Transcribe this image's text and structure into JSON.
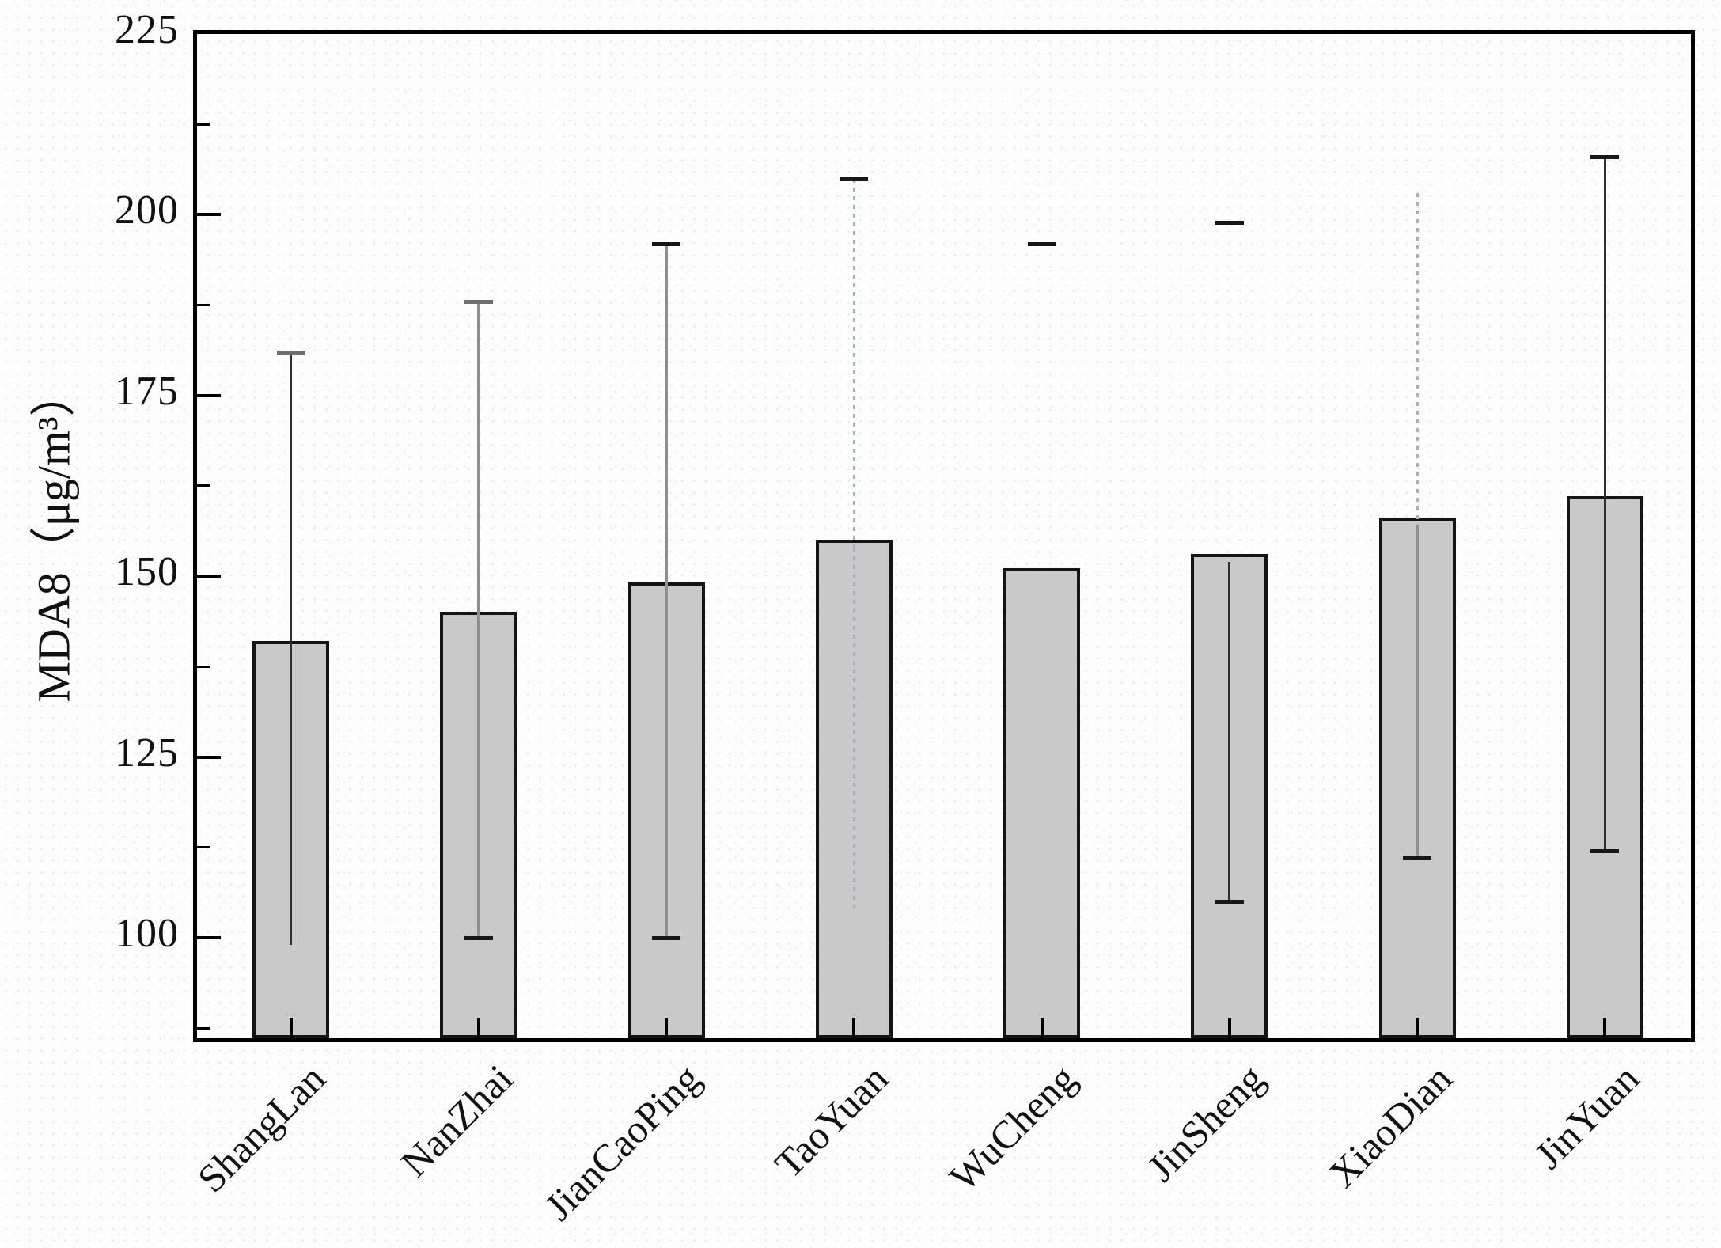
{
  "figure": {
    "background": "#fdfdfe"
  },
  "chart_data": {
    "type": "bar",
    "title": "",
    "xlabel": "",
    "ylabel": "MDA8（μg/m³）",
    "categories": [
      "ShangLan",
      "NanZhai",
      "JianCaoPing",
      "TaoYuan",
      "WuCheng",
      "JinSheng",
      "XiaoDian",
      "JinYuan"
    ],
    "values": [
      140,
      144,
      148,
      154,
      150,
      152,
      157,
      160
    ],
    "error_high": [
      181,
      188,
      196,
      205,
      196,
      199,
      203,
      208
    ],
    "error_low": [
      99,
      100,
      100,
      104,
      null,
      105,
      111,
      112
    ],
    "ylim": [
      85,
      225
    ],
    "yticks_major": [
      100,
      125,
      150,
      175,
      200,
      225
    ],
    "ytick_labels": [
      "100",
      "125",
      "150",
      "175",
      "200",
      "225"
    ],
    "yticks_minor": [
      87.5,
      112.5,
      137.5,
      162.5,
      187.5,
      212.5
    ],
    "grid": false,
    "legend": null,
    "bar_fill": "#c9c9c9",
    "bar_border": "#141414",
    "frame_color": "#000000",
    "error_colors": {
      "solid": "#2e2e2e",
      "light": "#8f8f8f",
      "dotted": "#a9b0bd",
      "cap_default": "#171717",
      "cap_gray": "#6f6f6f"
    },
    "error_bar_styles": [
      {
        "line_above": "solid",
        "line_below": "solid",
        "cap_top": true,
        "cap_bottom": false,
        "cap_top_color": "#6f6f6f"
      },
      {
        "line_above": "light",
        "line_below": "light",
        "cap_top": true,
        "cap_bottom": true,
        "cap_top_color": "#6f6f6f"
      },
      {
        "line_above": "light",
        "line_below": "light",
        "cap_top": true,
        "cap_bottom": true,
        "cap_top_color": "#171717"
      },
      {
        "line_above": "dotted",
        "line_below": "dotted",
        "cap_top": true,
        "cap_bottom": false,
        "cap_top_color": "#171717"
      },
      {
        "line_above": "none",
        "line_below": "none",
        "cap_top": true,
        "cap_bottom": false,
        "cap_top_color": "#171717"
      },
      {
        "line_above": "none",
        "line_below": "solid",
        "cap_top": true,
        "cap_bottom": true,
        "cap_top_color": "#171717"
      },
      {
        "line_above": "dotted",
        "line_below": "light",
        "cap_top": false,
        "cap_bottom": true,
        "cap_top_color": "#171717"
      },
      {
        "line_above": "solid",
        "line_below": "solid",
        "cap_top": true,
        "cap_bottom": true,
        "cap_top_color": "#171717"
      }
    ]
  }
}
